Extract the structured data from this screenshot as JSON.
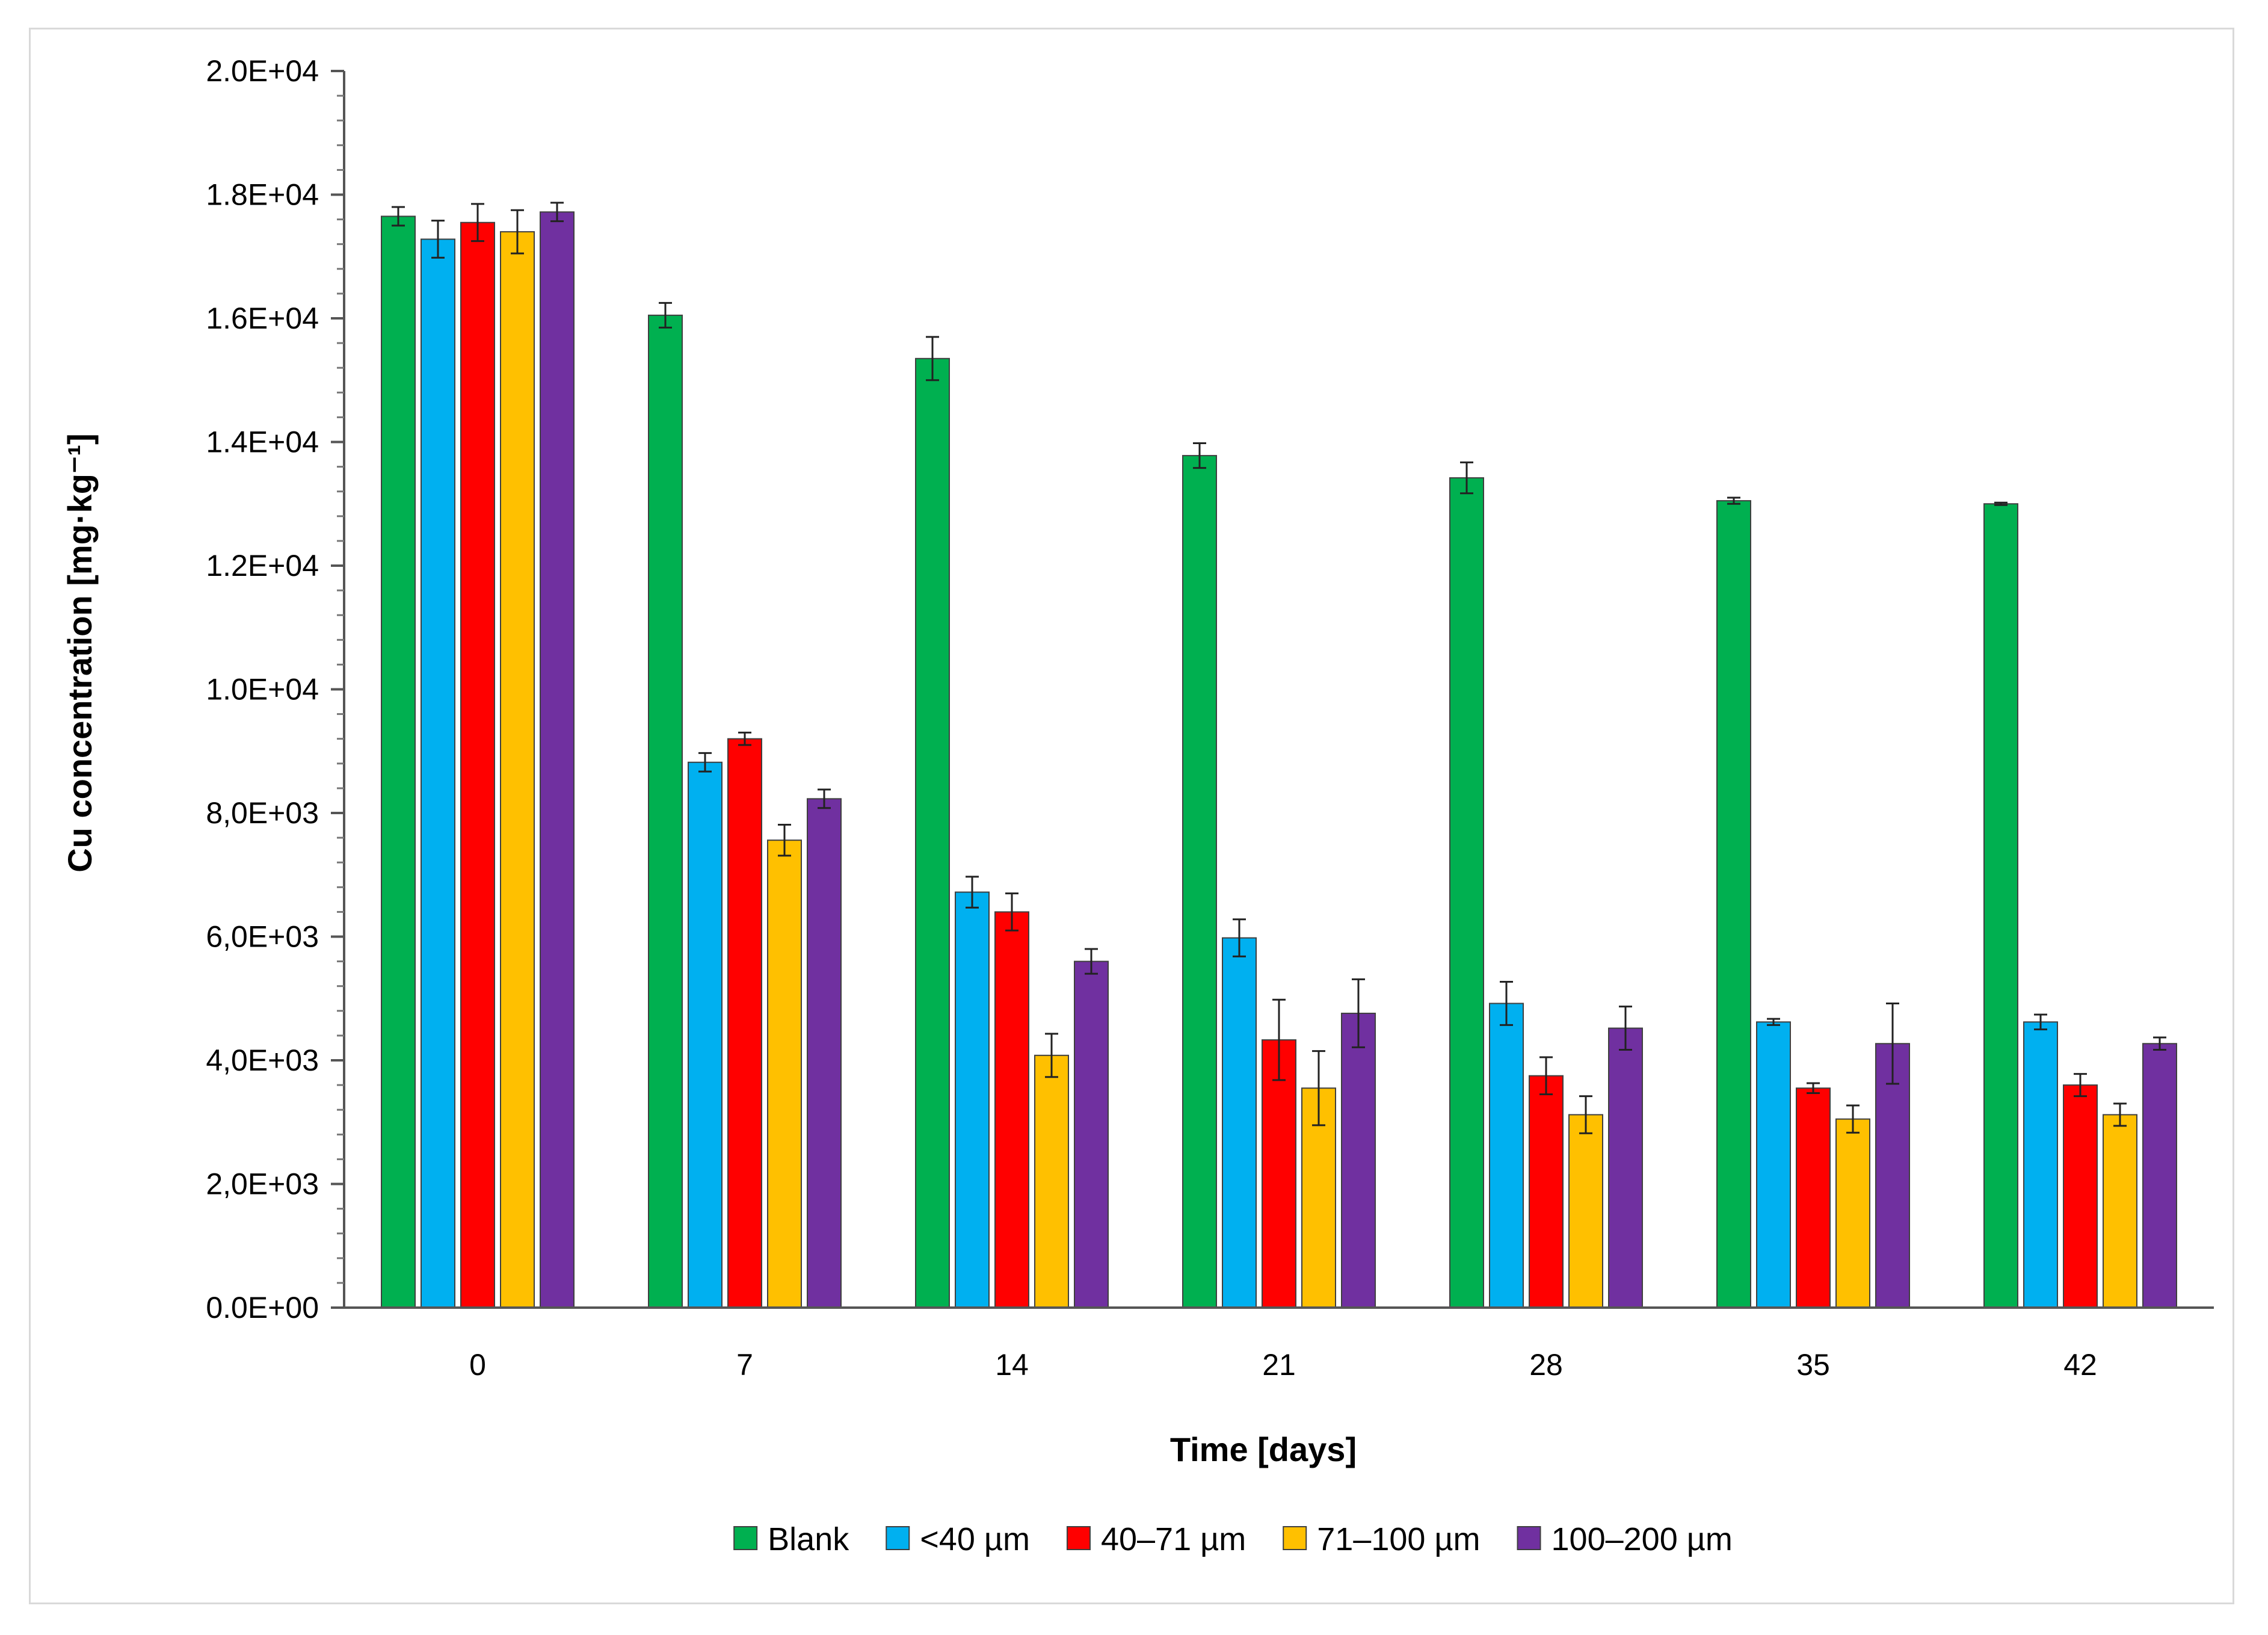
{
  "chart_data": {
    "type": "bar",
    "title": "",
    "xlabel": "Time [days]",
    "ylabel": "Cu concentration [mg·kg⁻¹]",
    "ylim": [
      0,
      20000
    ],
    "y_ticks": [
      0,
      2000,
      4000,
      6000,
      8000,
      10000,
      12000,
      14000,
      16000,
      18000,
      20000
    ],
    "y_tick_labels": [
      "0.0E+00",
      "2,0E+03",
      "4,0E+03",
      "6,0E+03",
      "8,0E+03",
      "1.0E+04",
      "1.2E+04",
      "1.4E+04",
      "1.6E+04",
      "1.8E+04",
      "2.0E+04"
    ],
    "categories": [
      "0",
      "7",
      "14",
      "21",
      "28",
      "35",
      "42"
    ],
    "legend_position": "bottom",
    "series": [
      {
        "name": "Blank",
        "color": "#00b050",
        "values": [
          17650,
          16050,
          15350,
          13780,
          13420,
          13050,
          13000
        ],
        "errors": [
          150,
          200,
          350,
          200,
          250,
          50,
          20
        ]
      },
      {
        "name": "<40 µm",
        "color": "#00b0f0",
        "values": [
          17280,
          8820,
          6720,
          5980,
          4920,
          4620,
          4620
        ],
        "errors": [
          300,
          150,
          250,
          300,
          350,
          50,
          120
        ]
      },
      {
        "name": "40–71 µm",
        "color": "#ff0000",
        "values": [
          17550,
          9200,
          6400,
          4330,
          3750,
          3550,
          3600
        ],
        "errors": [
          300,
          100,
          300,
          650,
          300,
          80,
          180
        ]
      },
      {
        "name": "71–100 µm",
        "color": "#ffc000",
        "values": [
          17400,
          7560,
          4080,
          3550,
          3120,
          3050,
          3120
        ],
        "errors": [
          350,
          250,
          350,
          600,
          300,
          220,
          180
        ]
      },
      {
        "name": "100–200 µm",
        "color": "#7030a0",
        "values": [
          17720,
          8230,
          5600,
          4760,
          4520,
          4270,
          4270
        ],
        "errors": [
          150,
          150,
          200,
          550,
          350,
          650,
          100
        ]
      }
    ]
  }
}
